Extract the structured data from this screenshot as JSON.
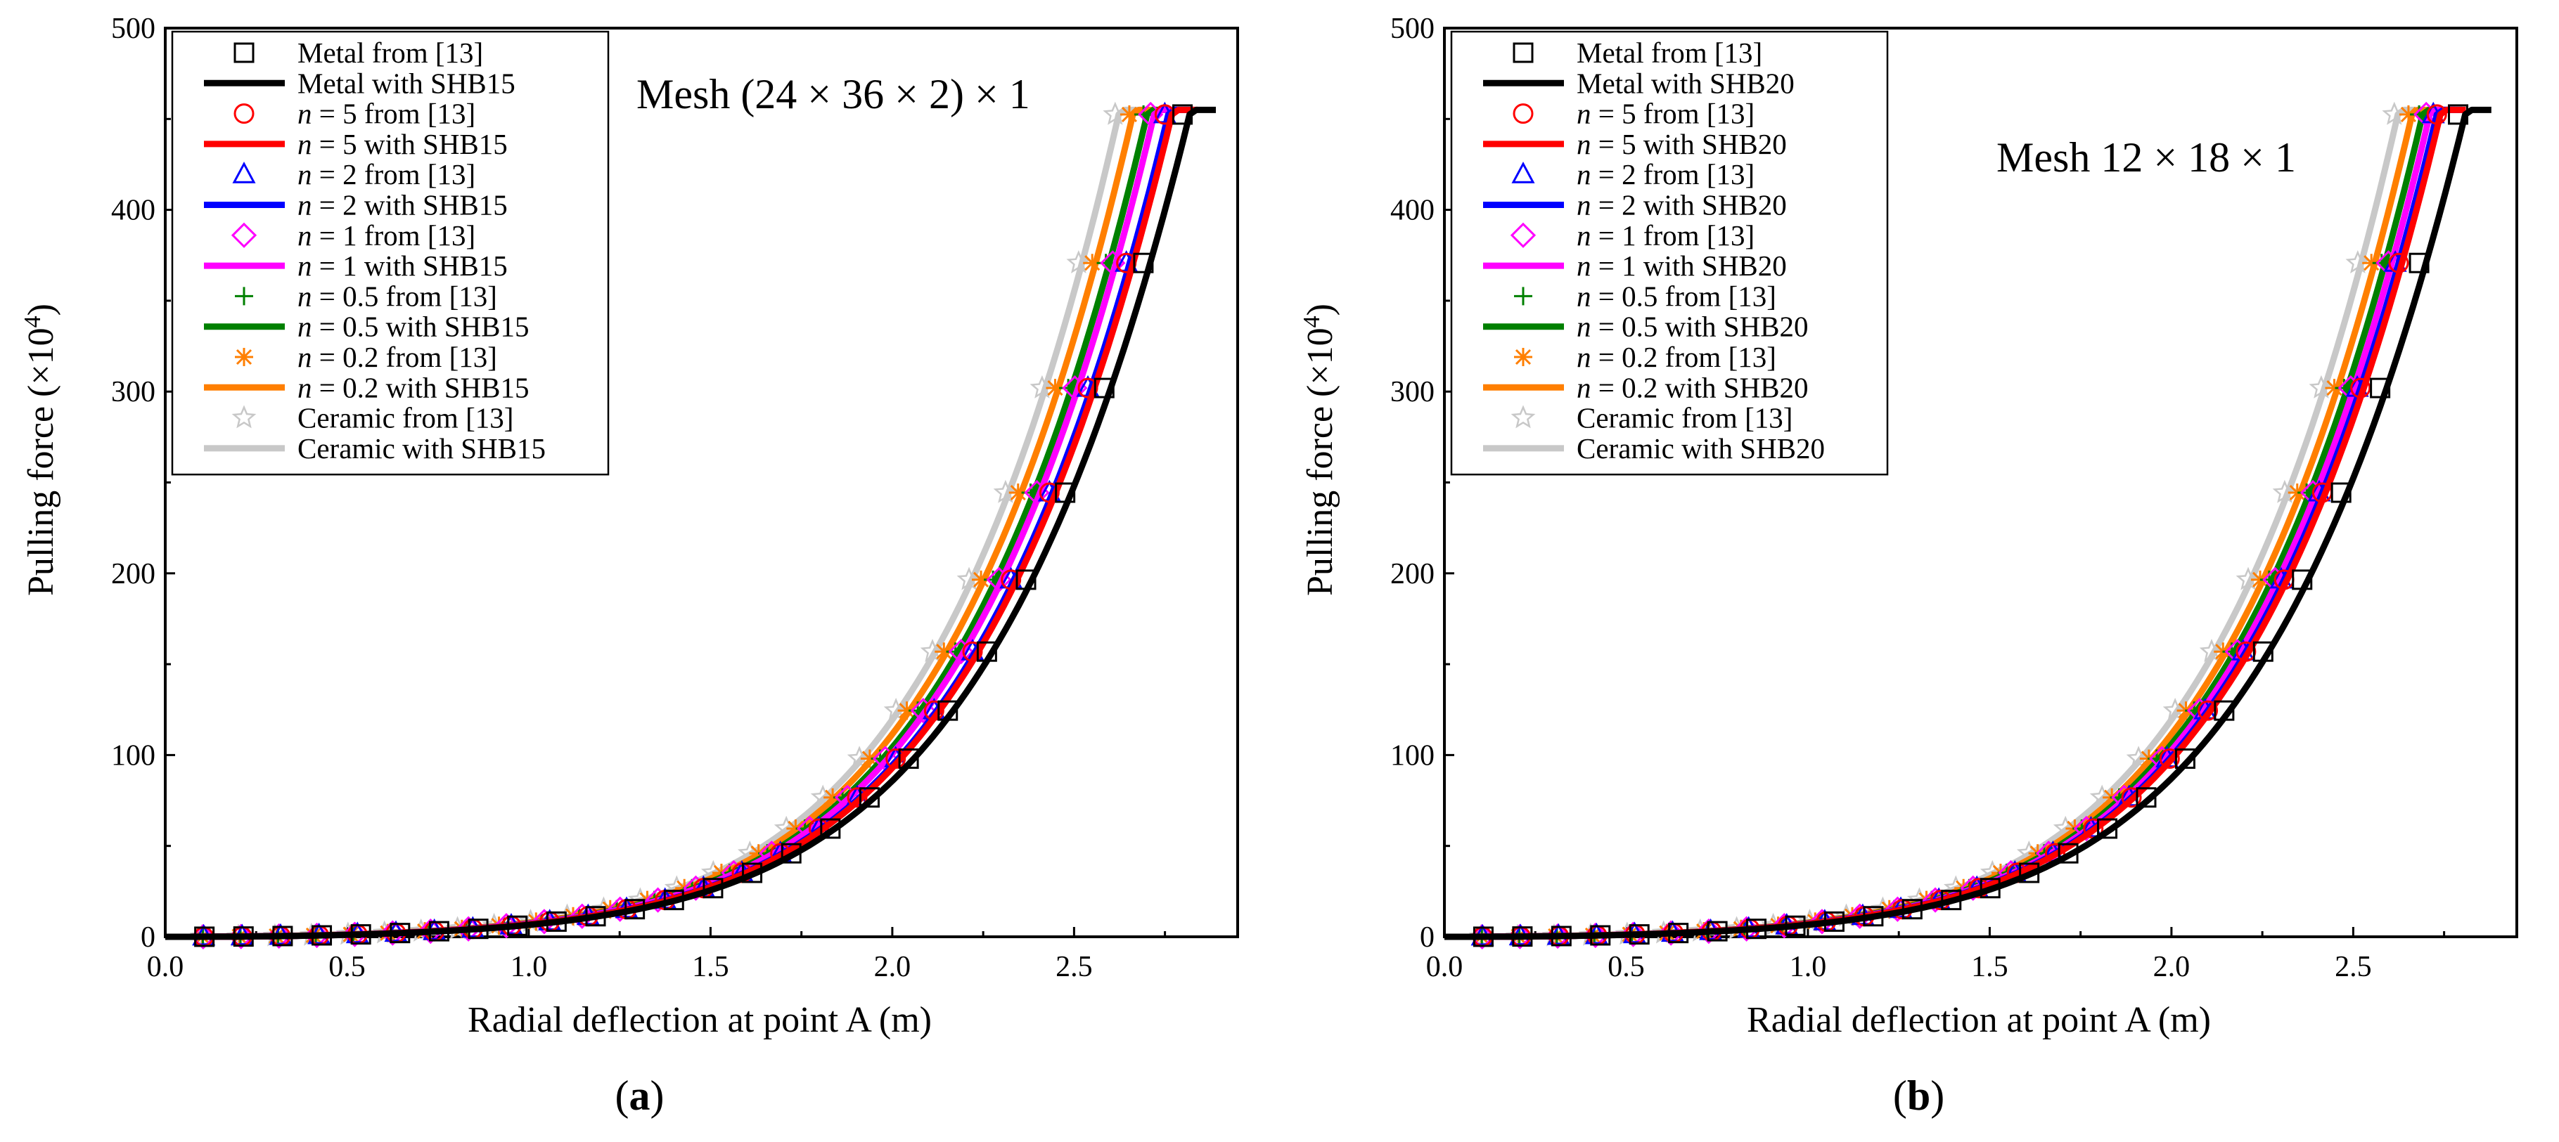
{
  "caption_a": "(a)",
  "caption_b": "(b)",
  "colors": {
    "metal": "#000000",
    "n5": "#ff0000",
    "n2": "#0000ff",
    "n1": "#ff00ff",
    "n05": "#008000",
    "n02": "#ff7f00",
    "ceramic": "#c8c8c8"
  },
  "chart_data": [
    {
      "type": "line",
      "panel": "a",
      "title": "Mesh (24 × 36 × 2) × 1",
      "xlabel": "Radial deflection at point A (m)",
      "ylabel_main": "Pulling force (×10",
      "ylabel_exp": "4",
      "ylabel_end": ")",
      "xlim": [
        0,
        2.95
      ],
      "ylim": [
        0,
        500
      ],
      "xticks": [
        "0.0",
        "0.5",
        "1.0",
        "1.5",
        "2.0",
        "2.5"
      ],
      "yticks": [
        "0",
        "100",
        "200",
        "300",
        "400",
        "500"
      ],
      "legend_position": "top-left",
      "series": [
        {
          "name": "Metal from [13]",
          "key": "metal",
          "style": "marker",
          "marker": "square",
          "xmax": 2.87
        },
        {
          "name": "Metal with SHB15",
          "key": "metal",
          "style": "line",
          "xmax": 2.89
        },
        {
          "name_italic": "n",
          "name_rest": " = 5 from [13]",
          "name": "n = 5 from [13]",
          "key": "n5",
          "style": "marker",
          "marker": "circle",
          "xmax": 2.82
        },
        {
          "name_italic": "n",
          "name_rest": " = 5 with SHB15",
          "name": "n = 5 with SHB15",
          "key": "n5",
          "style": "line",
          "xmax": 2.84
        },
        {
          "name_italic": "n",
          "name_rest": " = 2 from [13]",
          "name": "n = 2 from [13]",
          "key": "n2",
          "style": "marker",
          "marker": "triangle",
          "xmax": 2.82
        },
        {
          "name_italic": "n",
          "name_rest": " = 2 with SHB15",
          "name": "n = 2 with SHB15",
          "key": "n2",
          "style": "line",
          "xmax": 2.83
        },
        {
          "name_italic": "n",
          "name_rest": " = 1 from [13]",
          "name": "n = 1 from [13]",
          "key": "n1",
          "style": "marker",
          "marker": "diamond",
          "xmax": 2.78
        },
        {
          "name_italic": "n",
          "name_rest": " = 1 with SHB15",
          "name": "n = 1 with SHB15",
          "key": "n1",
          "style": "line",
          "xmax": 2.79
        },
        {
          "name_italic": "n",
          "name_rest": " = 0.5 from [13]",
          "name": "n = 0.5 from [13]",
          "key": "n05",
          "style": "marker",
          "marker": "plus",
          "xmax": 2.76
        },
        {
          "name_italic": "n",
          "name_rest": " = 0.5 with SHB15",
          "name": "n = 0.5 with SHB15",
          "key": "n05",
          "style": "line",
          "xmax": 2.77
        },
        {
          "name_italic": "n",
          "name_rest": " = 0.2 from [13]",
          "name": "n = 0.2 from [13]",
          "key": "n02",
          "style": "marker",
          "marker": "asterisk",
          "xmax": 2.72
        },
        {
          "name_italic": "n",
          "name_rest": " = 0.2 with SHB15",
          "name": "n = 0.2 with SHB15",
          "key": "n02",
          "style": "line",
          "xmax": 2.73
        },
        {
          "name": "Ceramic from [13]",
          "key": "ceramic",
          "style": "marker",
          "marker": "star",
          "xmax": 2.68
        },
        {
          "name": "Ceramic with SHB15",
          "key": "ceramic",
          "style": "line",
          "xmax": 2.69
        }
      ]
    },
    {
      "type": "line",
      "panel": "b",
      "title": "Mesh 12 × 18 × 1",
      "xlabel": "Radial deflection at point A (m)",
      "ylabel_main": "Pulling force (×10",
      "ylabel_exp": "4",
      "ylabel_end": ")",
      "xlim": [
        0,
        2.95
      ],
      "ylim": [
        0,
        500
      ],
      "xticks": [
        "0.0",
        "0.5",
        "1.0",
        "1.5",
        "2.0",
        "2.5"
      ],
      "yticks": [
        "0",
        "100",
        "200",
        "300",
        "400",
        "500"
      ],
      "legend_position": "top-left",
      "series": [
        {
          "name": "Metal from [13]",
          "key": "metal",
          "style": "marker",
          "marker": "square",
          "xmax": 2.86
        },
        {
          "name": "Metal with SHB20",
          "key": "metal",
          "style": "line",
          "xmax": 2.88
        },
        {
          "name_italic": "n",
          "name_rest": " = 5 from [13]",
          "name": "n = 5 from [13]",
          "key": "n5",
          "style": "marker",
          "marker": "circle",
          "xmax": 2.8
        },
        {
          "name_italic": "n",
          "name_rest": " = 5 with SHB20",
          "name": "n = 5 with SHB20",
          "key": "n5",
          "style": "line",
          "xmax": 2.81
        },
        {
          "name_italic": "n",
          "name_rest": " = 2 from [13]",
          "name": "n = 2 from [13]",
          "key": "n2",
          "style": "marker",
          "marker": "triangle",
          "xmax": 2.79
        },
        {
          "name_italic": "n",
          "name_rest": " = 2 with SHB20",
          "name": "n = 2 with SHB20",
          "key": "n2",
          "style": "line",
          "xmax": 2.8
        },
        {
          "name_italic": "n",
          "name_rest": " = 1 from [13]",
          "name": "n = 1 from [13]",
          "key": "n1",
          "style": "marker",
          "marker": "diamond",
          "xmax": 2.77
        },
        {
          "name_italic": "n",
          "name_rest": " = 1 with SHB20",
          "name": "n = 1 with SHB20",
          "key": "n1",
          "style": "line",
          "xmax": 2.78
        },
        {
          "name_italic": "n",
          "name_rest": " = 0.5 from [13]",
          "name": "n = 0.5 from [13]",
          "key": "n05",
          "style": "marker",
          "marker": "plus",
          "xmax": 2.75
        },
        {
          "name_italic": "n",
          "name_rest": " = 0.5 with SHB20",
          "name": "n = 0.5 with SHB20",
          "key": "n05",
          "style": "line",
          "xmax": 2.76
        },
        {
          "name_italic": "n",
          "name_rest": " = 0.2 from [13]",
          "name": "n = 0.2 from [13]",
          "key": "n02",
          "style": "marker",
          "marker": "asterisk",
          "xmax": 2.72
        },
        {
          "name_italic": "n",
          "name_rest": " = 0.2 with SHB20",
          "name": "n = 0.2 with SHB20",
          "key": "n02",
          "style": "line",
          "xmax": 2.73
        },
        {
          "name": "Ceramic from [13]",
          "key": "ceramic",
          "style": "marker",
          "marker": "star",
          "xmax": 2.68
        },
        {
          "name": "Ceramic with SHB20",
          "key": "ceramic",
          "style": "line",
          "xmax": 2.69
        }
      ]
    }
  ]
}
